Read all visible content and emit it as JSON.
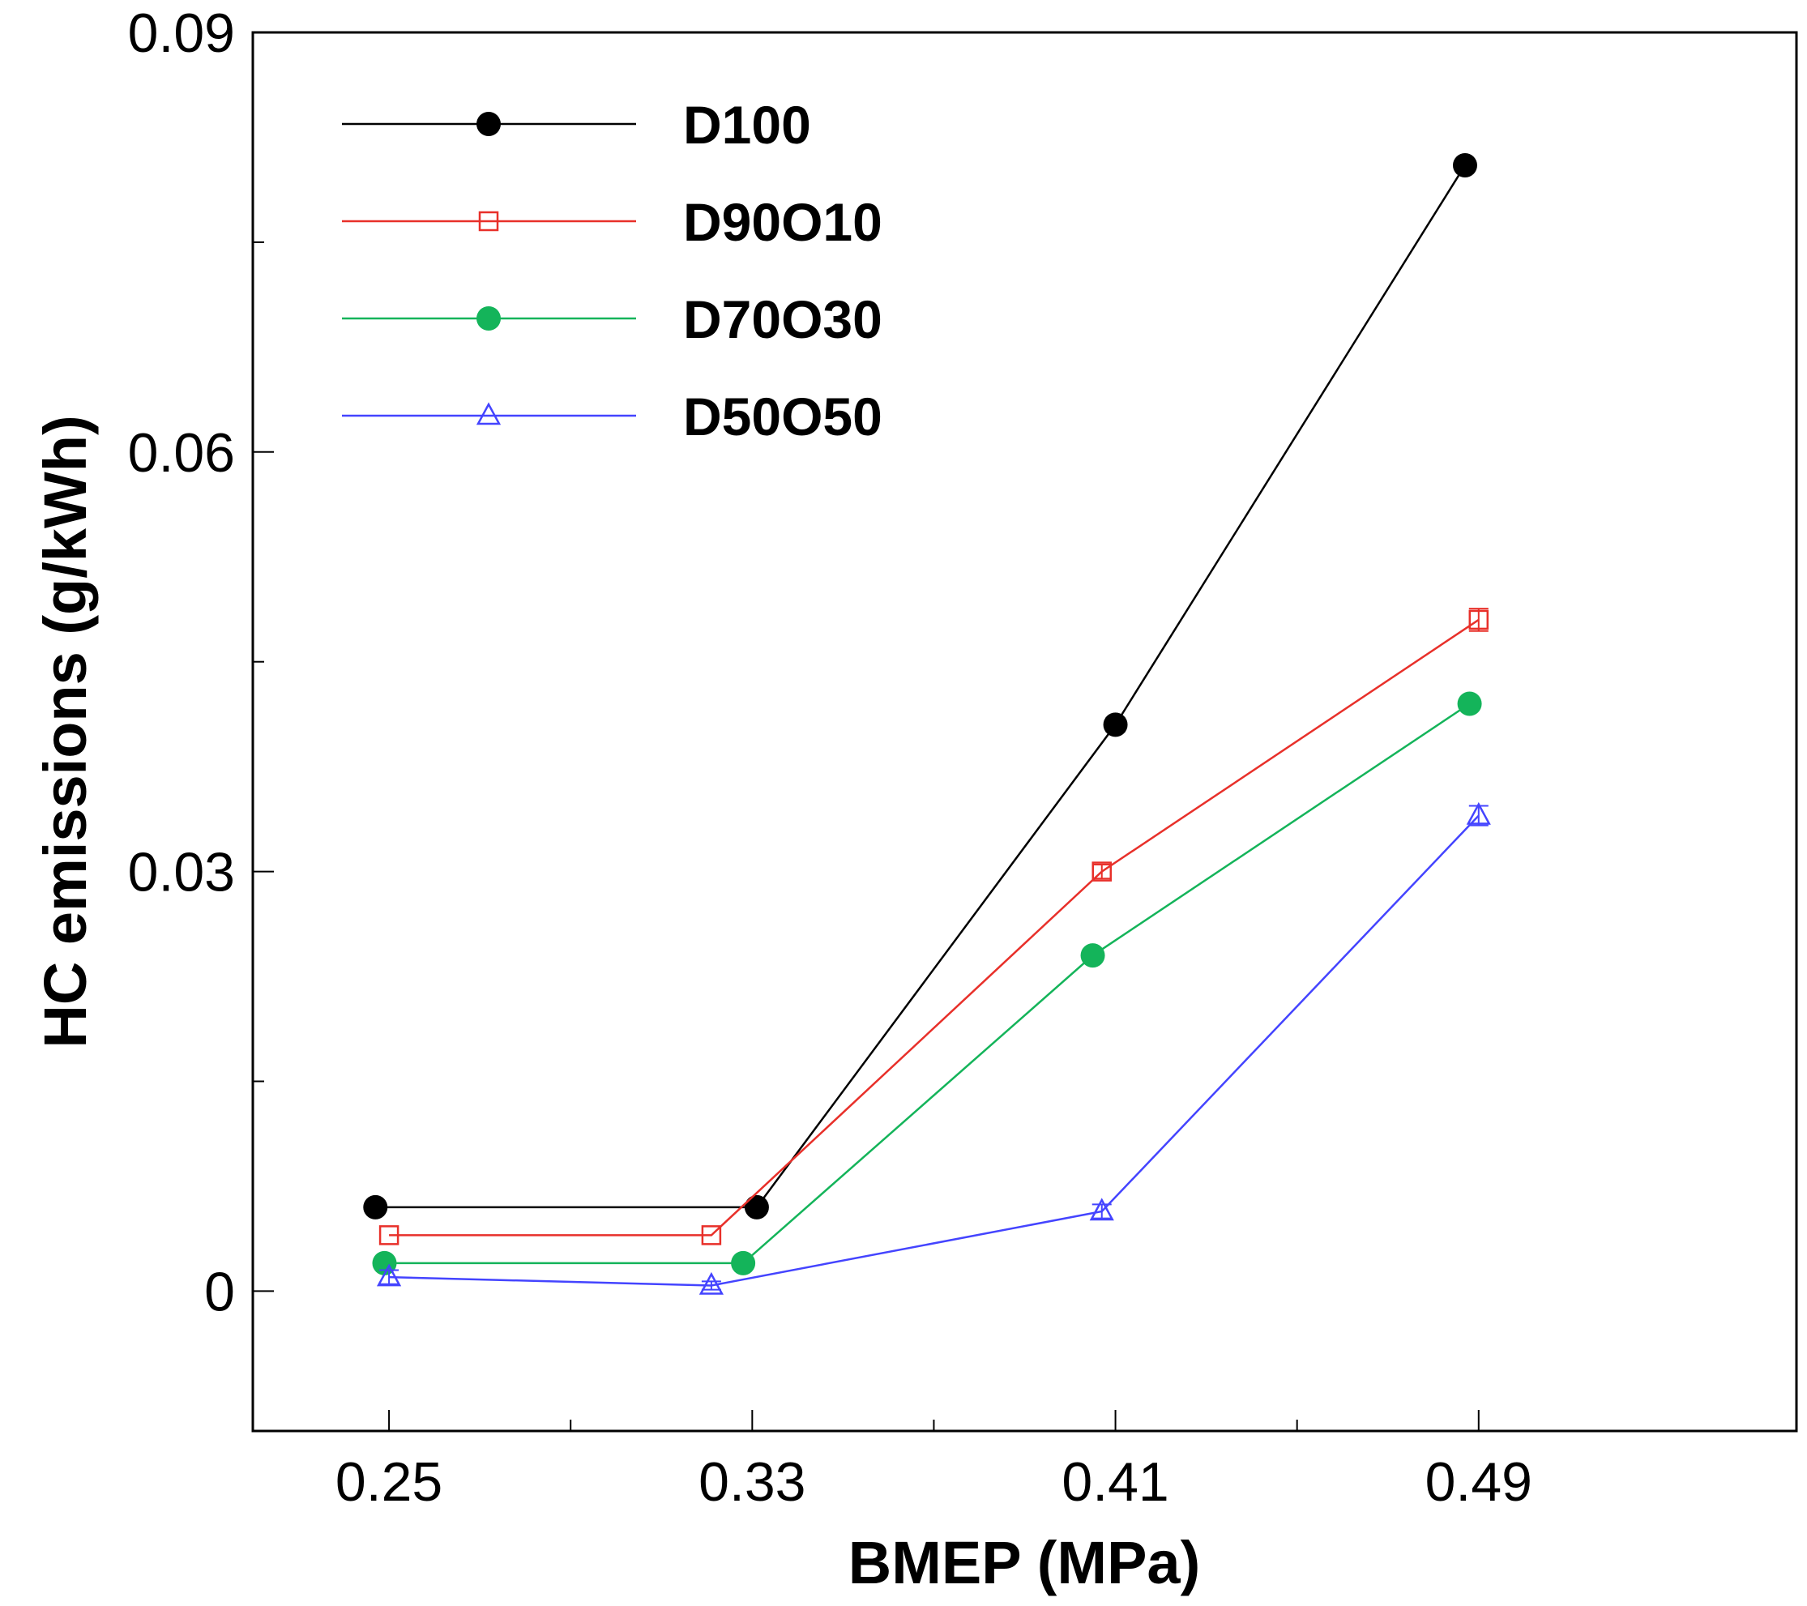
{
  "chart_data": {
    "type": "line",
    "title": "",
    "xlabel": "BMEP (MPa)",
    "ylabel": "HC emissions (g/kWh)",
    "x_ticks": [
      "0.25",
      "0.33",
      "0.41",
      "0.49"
    ],
    "y_ticks": [
      "0",
      "0.03",
      "0.06",
      "0.09"
    ],
    "xlim": [
      0.22,
      0.56
    ],
    "ylim": [
      -0.01,
      0.09
    ],
    "grid": false,
    "legend_position": "top-left",
    "series": [
      {
        "name": "D100",
        "color": "#000000",
        "marker": "filled-circle",
        "x": [
          0.247,
          0.331,
          0.41,
          0.487
        ],
        "y": [
          0.006,
          0.006,
          0.0405,
          0.0805
        ],
        "error": [
          0,
          0,
          0.0005,
          0
        ]
      },
      {
        "name": "D90O10",
        "color": "#e8302a",
        "marker": "open-square",
        "x": [
          0.25,
          0.321,
          0.407,
          0.49
        ],
        "y": [
          0.004,
          0.004,
          0.03,
          0.048
        ],
        "error": [
          0,
          0,
          0.0005,
          0.0008
        ]
      },
      {
        "name": "D70O30",
        "color": "#14b45a",
        "marker": "filled-circle",
        "x": [
          0.249,
          0.328,
          0.405,
          0.488
        ],
        "y": [
          0.002,
          0.002,
          0.024,
          0.042
        ],
        "error": [
          0,
          0,
          0,
          0
        ]
      },
      {
        "name": "D50O50",
        "color": "#4444ff",
        "marker": "open-triangle",
        "x": [
          0.25,
          0.321,
          0.407,
          0.49
        ],
        "y": [
          0.001,
          0.0004,
          0.0057,
          0.034
        ],
        "error": [
          0.0005,
          0.0003,
          0.0005,
          0.0007
        ]
      }
    ]
  }
}
